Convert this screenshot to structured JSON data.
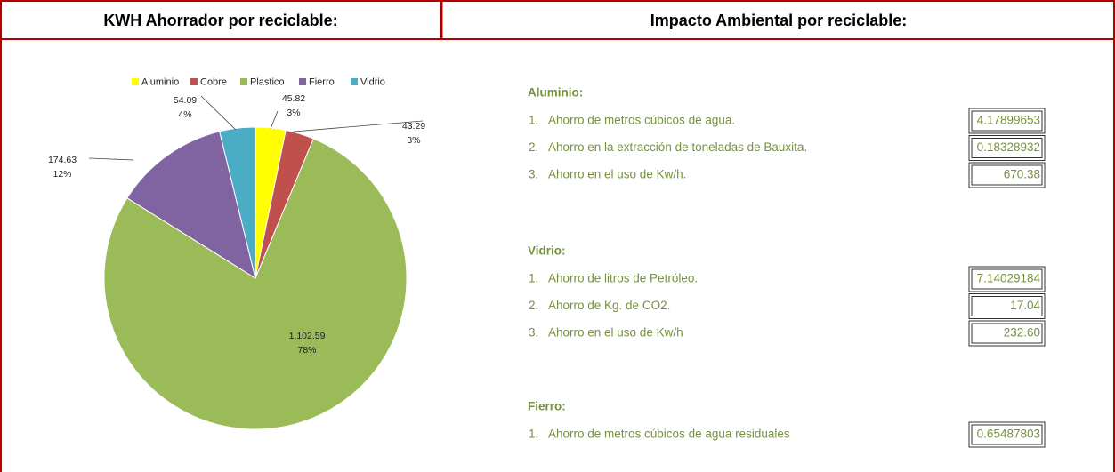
{
  "header": {
    "left": "KWH Ahorrador por reciclable:",
    "right": "Impacto Ambiental por reciclable:"
  },
  "chart_data": {
    "type": "pie",
    "categories": [
      "Aluminio",
      "Cobre",
      "Plastico",
      "Fierro",
      "Vidrio"
    ],
    "values": [
      45.82,
      43.29,
      1102.59,
      174.63,
      54.09
    ],
    "value_labels": [
      "45.82",
      "43.29",
      "1,102.59",
      "174.63",
      "54.09"
    ],
    "percent_labels": [
      "3%",
      "3%",
      "78%",
      "12%",
      "4%"
    ],
    "colors": [
      "#ffff00",
      "#c0504d",
      "#9bbb59",
      "#8064a2",
      "#4bacc6"
    ],
    "legend": "top"
  },
  "impact": [
    {
      "title": "Aluminio:",
      "items": [
        {
          "number": "1.",
          "text": "Ahorro de  metros cúbicos de agua.",
          "value": "4.17899653"
        },
        {
          "number": "2.",
          "text": "Ahorro en la extracción de  toneladas de Bauxita.",
          "value": "0.18328932"
        },
        {
          "number": "3.",
          "text": "Ahorro en el uso de  Kw/h.",
          "value": "670.38"
        }
      ]
    },
    {
      "title": "Vidrio:",
      "items": [
        {
          "number": "1.",
          "text": "Ahorro de litros de Petróleo.",
          "value": "7.14029184"
        },
        {
          "number": "2.",
          "text": "Ahorro de Kg. de CO2.",
          "value": "17.04"
        },
        {
          "number": "3.",
          "text": "Ahorro en el uso de  Kw/h",
          "value": "232.60"
        }
      ]
    },
    {
      "title": "Fierro:",
      "items": [
        {
          "number": "1.",
          "text": "Ahorro de   metros cúbicos de agua residuales",
          "value": "0.65487803"
        }
      ]
    }
  ]
}
